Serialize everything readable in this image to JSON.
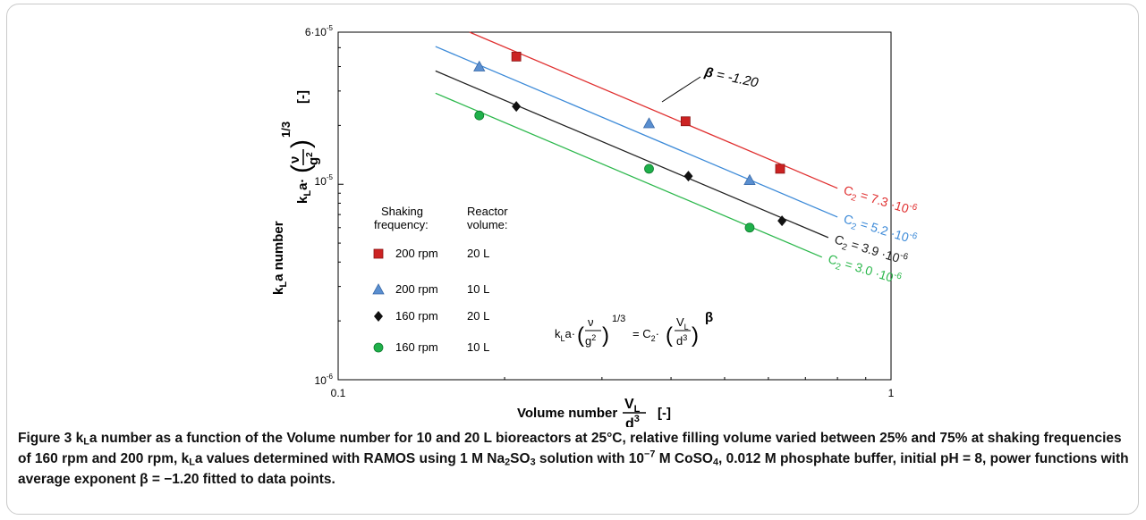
{
  "chart_data": {
    "type": "scatter",
    "x_scale": "log",
    "y_scale": "log",
    "xlim": [
      0.1,
      1
    ],
    "ylim": [
      1e-06,
      6e-05
    ],
    "x_tick_labels": [
      "0.1",
      "1"
    ],
    "y_tick_labels": [
      "10-6",
      "10-5",
      "6·10-5"
    ],
    "xlabel": "Volume number VL/d3 [-]",
    "ylabel": "kLa number kLa·(ν/g2)1/3 [-]",
    "legend_placement": "lower-left inside",
    "legend_headers": [
      "Shaking frequency:",
      "Reactor volume:"
    ],
    "beta": -1.2,
    "beta_label": "β = -1.20",
    "equation": "kLa·(ν/g2)1/3 = C2·(VL/d3)β",
    "series": [
      {
        "name": "200 rpm 20 L",
        "frequency": "200 rpm",
        "volume": "20 L",
        "marker": "square",
        "color": "#cc2222",
        "line_color": "#e03030",
        "c2": 7.3e-06,
        "c2_label": "C2 = 7.3 ·10-6",
        "x": [
          0.21,
          0.425,
          0.63
        ],
        "y": [
          4.5e-05,
          2.1e-05,
          1.2e-05
        ]
      },
      {
        "name": "200 rpm 10 L",
        "frequency": "200 rpm",
        "volume": "10 L",
        "marker": "triangle",
        "color": "#5a8fd0",
        "line_color": "#3c8ad8",
        "c2": 5.2e-06,
        "c2_label": "C2 = 5.2 ·10-6",
        "x": [
          0.18,
          0.365,
          0.555
        ],
        "y": [
          4e-05,
          2.05e-05,
          1.05e-05
        ]
      },
      {
        "name": "160 rpm 20 L",
        "frequency": "160 rpm",
        "volume": "20 L",
        "marker": "diamond",
        "color": "#111111",
        "line_color": "#222222",
        "c2": 3.9e-06,
        "c2_label": "C2 = 3.9 ·10-6",
        "x": [
          0.21,
          0.43,
          0.635
        ],
        "y": [
          2.5e-05,
          1.1e-05,
          6.5e-06
        ]
      },
      {
        "name": "160 rpm 10 L",
        "frequency": "160 rpm",
        "volume": "10 L",
        "marker": "circle",
        "color": "#1fb04a",
        "line_color": "#2db84d",
        "c2": 3e-06,
        "c2_label": "C2 = 3.0 ·10-6",
        "x": [
          0.18,
          0.365,
          0.555
        ],
        "y": [
          2.25e-05,
          1.2e-05,
          6e-06
        ]
      }
    ]
  },
  "caption": {
    "label": "Figure 3",
    "text_1": " k",
    "text_sub_L1": "L",
    "text_2": "a number as a function of the Volume number for 10 and 20 L bioreactors at 25°C, relative filling volume varied between 25% and 75% at shaking frequencies of 160 rpm and 200 rpm, k",
    "text_sub_L2": "L",
    "text_3": "a values determined with RAMOS using 1 M Na",
    "text_sub_2": "2",
    "text_4": "SO",
    "text_sub_3": "3",
    "text_5": " solution with 10",
    "text_sup_m7": "−7",
    "text_6": " M CoSO",
    "text_sub_4": "4",
    "text_7": ", 0.012 M phosphate buffer, initial pH = 8, power functions with average exponent β = −1.20 fitted to data points."
  }
}
